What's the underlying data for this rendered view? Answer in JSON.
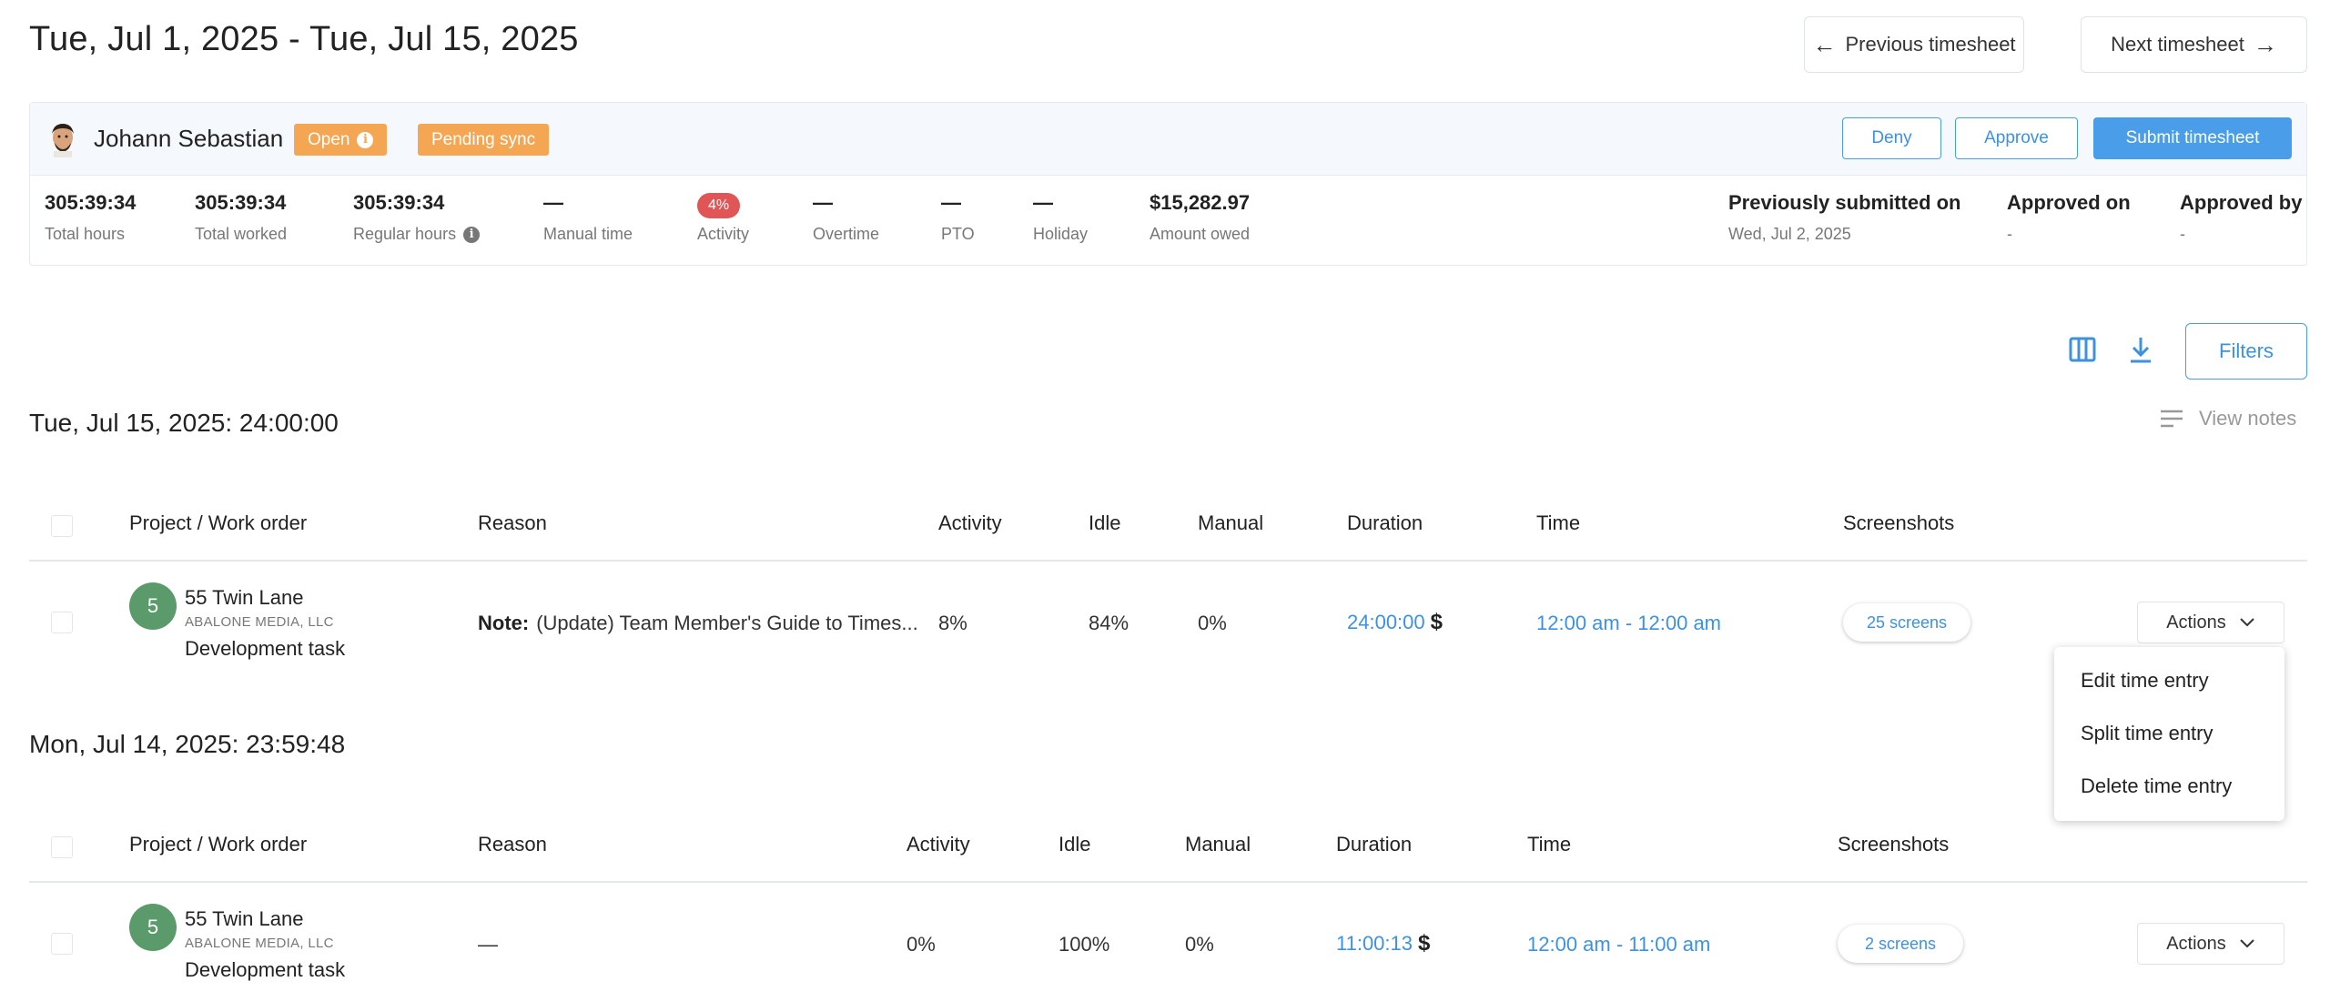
{
  "header": {
    "date_range": "Tue, Jul 1, 2025 - Tue, Jul 15, 2025",
    "prev_label": "Previous timesheet",
    "next_label": "Next timesheet"
  },
  "member": {
    "name": "Johann Sebastian",
    "status_badge": "Open",
    "sync_badge": "Pending sync",
    "deny_label": "Deny",
    "approve_label": "Approve",
    "submit_label": "Submit timesheet"
  },
  "stats": [
    {
      "value": "305:39:34",
      "label": "Total hours"
    },
    {
      "value": "305:39:34",
      "label": "Total worked"
    },
    {
      "value": "305:39:34",
      "label": "Regular hours"
    },
    {
      "value": "—",
      "label": "Manual time"
    },
    {
      "value": "4%",
      "label": "Activity"
    },
    {
      "value": "—",
      "label": "Overtime"
    },
    {
      "value": "—",
      "label": "PTO"
    },
    {
      "value": "—",
      "label": "Holiday"
    },
    {
      "value": "$15,282.97",
      "label": "Amount owed"
    }
  ],
  "submission": [
    {
      "value": "Previously submitted on",
      "label": "Wed, Jul 2, 2025"
    },
    {
      "value": "Approved on",
      "label": "-"
    },
    {
      "value": "Approved by",
      "label": "-"
    }
  ],
  "toolbar": {
    "filters_label": "Filters",
    "view_notes_label": "View notes"
  },
  "columns": {
    "project": "Project / Work order",
    "reason": "Reason",
    "activity": "Activity",
    "idle": "Idle",
    "manual": "Manual",
    "duration": "Duration",
    "time": "Time",
    "screenshots": "Screenshots"
  },
  "days": [
    {
      "title": "Tue, Jul 15, 2025: 24:00:00",
      "entry": {
        "avatar": "5",
        "project": "55 Twin Lane",
        "client": "ABALONE MEDIA, LLC",
        "task": "Development task",
        "note_label": "Note:",
        "reason": "(Update) Team Member's Guide to Times...",
        "activity": "8%",
        "idle": "84%",
        "manual": "0%",
        "duration": "24:00:00",
        "dollar": "$",
        "time": "12:00 am - 12:00 am",
        "screens": "25 screens",
        "actions": "Actions"
      }
    },
    {
      "title": "Mon, Jul 14, 2025: 23:59:48",
      "entry": {
        "avatar": "5",
        "project": "55 Twin Lane",
        "client": "ABALONE MEDIA, LLC",
        "task": "Development task",
        "reason": "—",
        "activity": "0%",
        "idle": "100%",
        "manual": "0%",
        "duration": "11:00:13",
        "dollar": "$",
        "time": "12:00 am - 11:00 am",
        "screens": "2 screens",
        "actions": "Actions"
      }
    }
  ],
  "actions_menu": [
    "Edit time entry",
    "Split time entry",
    "Delete time entry"
  ],
  "colors": {
    "accent": "#4a9de8",
    "badge_orange": "#f5a652",
    "activity_red": "#e05656",
    "project_green": "#5b9a6a"
  }
}
